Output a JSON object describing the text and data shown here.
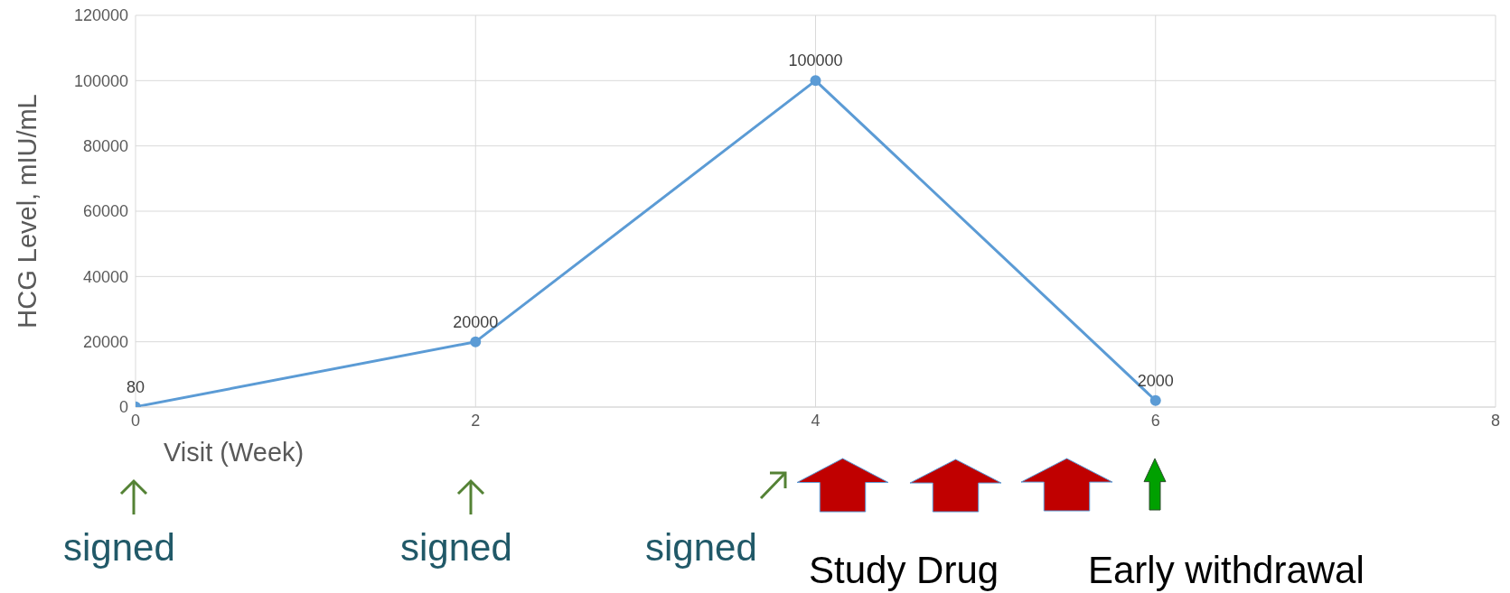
{
  "chart_data": {
    "type": "line",
    "xlabel": "Visit (Week)",
    "ylabel": "HCG Level, mIU/mL",
    "x": [
      0,
      2,
      4,
      6
    ],
    "series": [
      {
        "color": "#5b9bd5",
        "values": [
          80,
          20000,
          100000,
          2000
        ]
      }
    ],
    "xlim": [
      0,
      8
    ],
    "xticks": [
      0,
      2,
      4,
      6,
      8
    ],
    "ylim": [
      0,
      120000
    ],
    "yticks": [
      0,
      20000,
      40000,
      60000,
      80000,
      100000,
      120000
    ],
    "grid": true,
    "marker": "circle",
    "data_labels": true,
    "legend": false,
    "annotations": [
      "signed",
      "signed",
      "signed",
      "Study Drug",
      "Early withdrawal"
    ]
  }
}
